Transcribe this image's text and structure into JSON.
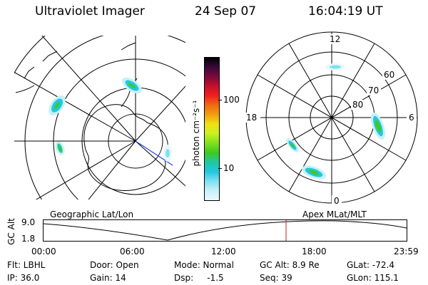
{
  "header": {
    "title": "Ultraviolet Imager",
    "date": "24 Sep 07",
    "time": "16:04:19 UT"
  },
  "colorbar": {
    "unit_label": "photon cm⁻²s⁻¹",
    "ticks": [
      "100",
      "10"
    ],
    "colors": [
      "#000000",
      "#3a0a3a",
      "#7a0a3a",
      "#c4102a",
      "#f02020",
      "#f06a10",
      "#f0a010",
      "#f0e010",
      "#c8f020",
      "#80e020",
      "#40c820",
      "#20c8a0",
      "#20c8e0",
      "#80e0f0",
      "#c8f0f8",
      "#e8f8fc"
    ]
  },
  "left_map": {
    "projection_label": "Geographic Lat/Lon"
  },
  "right_map": {
    "projection_label": "Apex MLat/MLT",
    "mlt_labels": {
      "top": "12",
      "left": "18",
      "right": "6",
      "bottom": "0"
    },
    "lat_labels": [
      "60",
      "70",
      "80"
    ]
  },
  "timeline": {
    "ylabel": "GC Alt",
    "y_ticks": [
      "9.0",
      "1.8"
    ],
    "x_ticks": [
      "00:00",
      "06:00",
      "12:00",
      "18:00",
      "23:59"
    ]
  },
  "meta": {
    "flt": "Flt: LBHL",
    "ip": "IP: 36.0",
    "door": "Door: Open",
    "gain": "Gain: 14",
    "mode": "Mode: Normal",
    "dsp": "Dsp:     -1.5",
    "gcalt": "GC Alt: 8.9 Re",
    "seq": "Seq: 39",
    "glat": "GLat: -72.4",
    "glon": "GLon: 115.1"
  }
}
